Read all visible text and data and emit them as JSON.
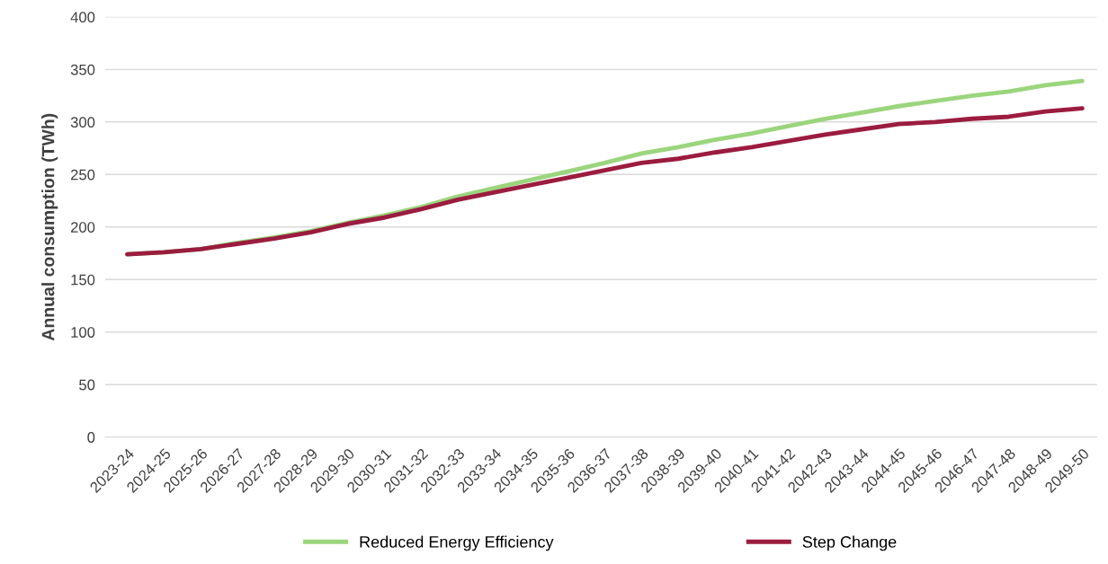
{
  "chart_data": {
    "type": "line",
    "ylabel": "Annual consumption (TWh)",
    "categories": [
      "2023-24",
      "2024-25",
      "2025-26",
      "2026-27",
      "2027-28",
      "2028-29",
      "2029-30",
      "2030-31",
      "2031-32",
      "2032-33",
      "2033-34",
      "2034-35",
      "2035-36",
      "2036-37",
      "2037-38",
      "2038-39",
      "2039-40",
      "2040-41",
      "2041-42",
      "2042-43",
      "2043-44",
      "2044-45",
      "2045-46",
      "2046-47",
      "2047-48",
      "2048-49",
      "2049-50"
    ],
    "series": [
      {
        "name": "Reduced Energy Efficiency",
        "color": "#9bd57d",
        "values": [
          174,
          176,
          179,
          185,
          190,
          196,
          204,
          211,
          219,
          229,
          237,
          245,
          253,
          261,
          270,
          276,
          283,
          289,
          296,
          303,
          309,
          315,
          320,
          325,
          329,
          335,
          339
        ]
      },
      {
        "name": "Step Change",
        "color": "#9b1c3f",
        "values": [
          174,
          176,
          179,
          184,
          189,
          195,
          203,
          209,
          217,
          226,
          233,
          240,
          247,
          254,
          261,
          265,
          271,
          276,
          282,
          288,
          293,
          298,
          300,
          303,
          305,
          310,
          313
        ]
      }
    ],
    "ylim": [
      0,
      400
    ],
    "yticks": [
      0,
      50,
      100,
      150,
      200,
      250,
      300,
      350,
      400
    ],
    "grid": "y",
    "legend": "bottom",
    "marker": "none",
    "line_style": "solid"
  }
}
